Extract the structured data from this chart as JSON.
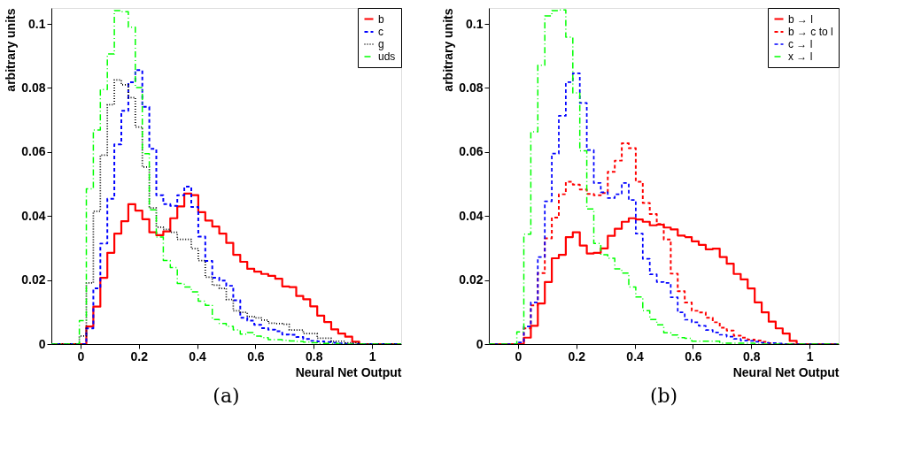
{
  "chart_data": [
    {
      "type": "histogram",
      "xlabel": "Neural Net Output",
      "ylabel": "arbitrary units",
      "annotations": [
        "(a)"
      ],
      "legend": "top right",
      "grid": false,
      "xlim": [
        -0.1,
        1.1
      ],
      "ylim": [
        0,
        0.105
      ],
      "xticks": [
        0,
        0.2,
        0.4,
        0.6,
        0.8,
        1
      ],
      "yticks": [
        0,
        0.02,
        0.04,
        0.06,
        0.08,
        0.1
      ],
      "bins": [
        -0.1,
        -0.076,
        -0.052,
        -0.028,
        -0.004,
        0.02,
        0.044,
        0.068,
        0.092,
        0.116,
        0.14,
        0.164,
        0.188,
        0.212,
        0.236,
        0.26,
        0.284,
        0.308,
        0.332,
        0.356,
        0.38,
        0.404,
        0.428,
        0.452,
        0.476,
        0.5,
        0.524,
        0.548,
        0.572,
        0.596,
        0.62,
        0.644,
        0.668,
        0.692,
        0.716,
        0.74,
        0.764,
        0.788,
        0.812,
        0.836,
        0.86,
        0.884,
        0.908,
        0.932,
        0.956,
        0.98,
        1.004,
        1.028,
        1.052,
        1.076,
        1.1
      ],
      "series": [
        {
          "name": "b",
          "color": "#ff0000",
          "line_style": "solid",
          "values": [
            0,
            0,
            0,
            0,
            0,
            0.0055,
            0.0117,
            0.0207,
            0.0285,
            0.0345,
            0.0384,
            0.0437,
            0.0417,
            0.039,
            0.0349,
            0.034,
            0.0352,
            0.0393,
            0.043,
            0.047,
            0.0465,
            0.0412,
            0.0386,
            0.0367,
            0.0345,
            0.0316,
            0.0279,
            0.0257,
            0.0235,
            0.0226,
            0.0219,
            0.0213,
            0.0204,
            0.018,
            0.0178,
            0.015,
            0.014,
            0.0118,
            0.0089,
            0.0069,
            0.0046,
            0.0033,
            0.0023,
            0.0007,
            0,
            0,
            0,
            0,
            0,
            0
          ]
        },
        {
          "name": "c",
          "color": "#0000ff",
          "line_style": "dashed",
          "values": [
            0,
            0,
            0,
            0,
            0,
            0.0049,
            0.0174,
            0.0314,
            0.0454,
            0.0624,
            0.0729,
            0.0818,
            0.0856,
            0.0741,
            0.061,
            0.0465,
            0.0437,
            0.0432,
            0.0465,
            0.0492,
            0.0428,
            0.0336,
            0.026,
            0.0207,
            0.0198,
            0.0182,
            0.0137,
            0.0082,
            0.0073,
            0.006,
            0.005,
            0.0045,
            0.004,
            0.003,
            0.0029,
            0.0022,
            0.0016,
            0.001,
            0.0008,
            0.0006,
            0.0004,
            0.0002,
            0.0001,
            0,
            0,
            0,
            0,
            0,
            0,
            0
          ]
        },
        {
          "name": "g",
          "color": "#000000",
          "line_style": "dotted",
          "values": [
            0,
            0,
            0,
            0,
            0.0025,
            0.0191,
            0.0415,
            0.059,
            0.0748,
            0.0825,
            0.081,
            0.077,
            0.0678,
            0.0553,
            0.0425,
            0.0365,
            0.0358,
            0.0349,
            0.0327,
            0.0327,
            0.0298,
            0.0261,
            0.0209,
            0.0184,
            0.0174,
            0.0139,
            0.0104,
            0.0099,
            0.0086,
            0.0082,
            0.0075,
            0.0065,
            0.0064,
            0.0062,
            0.0044,
            0.0044,
            0.0033,
            0.0033,
            0.0018,
            0.0018,
            0.0009,
            0.0009,
            0.0004,
            0.0004,
            0,
            0,
            0,
            0,
            0,
            0
          ]
        },
        {
          "name": "uds",
          "color": "#00ff00",
          "line_style": "dashdot",
          "values": [
            0,
            0,
            0,
            0,
            0.0073,
            0.0485,
            0.0669,
            0.0795,
            0.0906,
            0.1042,
            0.1038,
            0.099,
            0.0801,
            0.0595,
            0.0419,
            0.0334,
            0.0261,
            0.0239,
            0.0189,
            0.0178,
            0.0163,
            0.0134,
            0.0121,
            0.0077,
            0.0064,
            0.0055,
            0.0044,
            0.0031,
            0.0036,
            0.0025,
            0.002,
            0.0014,
            0.0014,
            0.0012,
            0.001,
            0.0008,
            0.0006,
            0.0004,
            0.0002,
            0.0002,
            0.0002,
            0,
            0,
            0,
            0,
            0,
            0,
            0,
            0,
            0
          ]
        }
      ]
    },
    {
      "type": "histogram",
      "xlabel": "Neural Net Output",
      "ylabel": "arbitrary units",
      "annotations": [
        "(b)"
      ],
      "legend": "top right",
      "grid": false,
      "xlim": [
        -0.1,
        1.1
      ],
      "ylim": [
        0,
        0.105
      ],
      "xticks": [
        0,
        0.2,
        0.4,
        0.6,
        0.8,
        1
      ],
      "yticks": [
        0,
        0.02,
        0.04,
        0.06,
        0.08,
        0.1
      ],
      "bins": [
        -0.1,
        -0.076,
        -0.052,
        -0.028,
        -0.004,
        0.02,
        0.044,
        0.068,
        0.092,
        0.116,
        0.14,
        0.164,
        0.188,
        0.212,
        0.236,
        0.26,
        0.284,
        0.308,
        0.332,
        0.356,
        0.38,
        0.404,
        0.428,
        0.452,
        0.476,
        0.5,
        0.524,
        0.548,
        0.572,
        0.596,
        0.62,
        0.644,
        0.668,
        0.692,
        0.716,
        0.74,
        0.764,
        0.788,
        0.812,
        0.836,
        0.86,
        0.884,
        0.908,
        0.932,
        0.956,
        0.98,
        1.004,
        1.028,
        1.052,
        1.076,
        1.1
      ],
      "series": [
        {
          "name": "b → l",
          "color": "#ff0000",
          "line_style": "solid",
          "values": [
            0,
            0,
            0,
            0,
            0,
            0.002,
            0.0057,
            0.0127,
            0.0194,
            0.0268,
            0.0279,
            0.0334,
            0.0349,
            0.0308,
            0.0283,
            0.0285,
            0.0299,
            0.0338,
            0.036,
            0.0382,
            0.0393,
            0.0389,
            0.0382,
            0.0371,
            0.0373,
            0.0364,
            0.0358,
            0.0339,
            0.0334,
            0.0321,
            0.031,
            0.0296,
            0.0298,
            0.0272,
            0.0251,
            0.0219,
            0.0202,
            0.0174,
            0.013,
            0.0099,
            0.007,
            0.0049,
            0.0033,
            0.001,
            0,
            0,
            0,
            0,
            0,
            0
          ]
        },
        {
          "name": "b → c to l",
          "color": "#ff0000",
          "line_style": "dashed",
          "values": [
            0,
            0,
            0,
            0,
            0,
            0.0049,
            0.0121,
            0.0222,
            0.033,
            0.0395,
            0.0468,
            0.0507,
            0.0498,
            0.0483,
            0.0469,
            0.0465,
            0.0472,
            0.0538,
            0.0573,
            0.0627,
            0.0612,
            0.0507,
            0.0441,
            0.0406,
            0.0375,
            0.0327,
            0.022,
            0.0165,
            0.013,
            0.0104,
            0.0099,
            0.0082,
            0.0068,
            0.0051,
            0.0042,
            0.0026,
            0.002,
            0.0014,
            0.0011,
            0.0007,
            0.0003,
            0,
            0,
            0,
            0,
            0,
            0,
            0,
            0,
            0
          ]
        },
        {
          "name": "c → l",
          "color": "#0000ff",
          "line_style": "dashed",
          "values": [
            0,
            0,
            0,
            0,
            0.0005,
            0.0055,
            0.013,
            0.0272,
            0.0446,
            0.0595,
            0.0713,
            0.0818,
            0.0846,
            0.0753,
            0.0606,
            0.0503,
            0.0474,
            0.0456,
            0.0468,
            0.0503,
            0.045,
            0.0345,
            0.0266,
            0.0218,
            0.0194,
            0.0191,
            0.0146,
            0.0099,
            0.0076,
            0.0068,
            0.0057,
            0.0044,
            0.0036,
            0.0029,
            0.0023,
            0.0016,
            0.0011,
            0.001,
            0.0007,
            0.0004,
            0.0003,
            0.0002,
            0,
            0,
            0,
            0,
            0,
            0,
            0,
            0
          ]
        },
        {
          "name": "x → l",
          "color": "#00ff00",
          "line_style": "dashdot",
          "values": [
            0,
            0,
            0,
            0,
            0.0038,
            0.0343,
            0.0663,
            0.0871,
            0.1025,
            0.1042,
            0.1044,
            0.0959,
            0.0785,
            0.0604,
            0.0422,
            0.0314,
            0.0279,
            0.0268,
            0.0235,
            0.0222,
            0.0178,
            0.0147,
            0.0104,
            0.0077,
            0.006,
            0.0035,
            0.0028,
            0.002,
            0.0018,
            0.0009,
            0.0009,
            0.0009,
            0.0009,
            0.0003,
            0.0003,
            0.0003,
            0.0003,
            0.0003,
            0,
            0,
            0,
            0,
            0,
            0,
            0,
            0,
            0,
            0,
            0,
            0
          ]
        }
      ]
    }
  ]
}
